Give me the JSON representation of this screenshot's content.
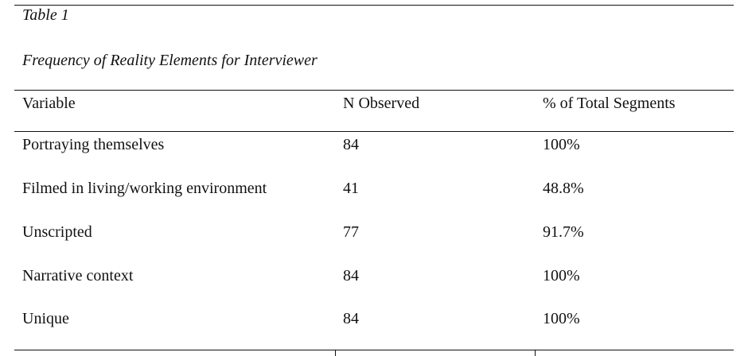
{
  "table": {
    "label": "Table 1",
    "title": "Frequency of Reality Elements for Interviewer",
    "headers": [
      "Variable",
      "N Observed",
      "% of Total Segments"
    ],
    "rows": [
      [
        "Portraying themselves",
        "84",
        "100%"
      ],
      [
        "Filmed in living/working environment",
        "41",
        "48.8%"
      ],
      [
        "Unscripted",
        "77",
        "91.7%"
      ],
      [
        "Narrative context",
        "84",
        "100%"
      ],
      [
        "Unique",
        "84",
        "100%"
      ]
    ]
  }
}
